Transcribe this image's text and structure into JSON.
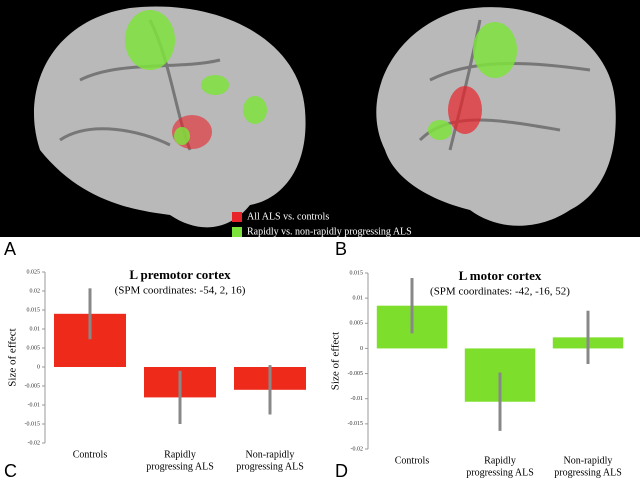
{
  "figure": {
    "panels": [
      "A",
      "B",
      "C",
      "D"
    ],
    "legend": [
      {
        "label": "All ALS vs. controls",
        "color": "#e8232a"
      },
      {
        "label": "Rapidly vs. non-rapidly progressing ALS",
        "color": "#7ee23c"
      }
    ]
  },
  "chart_data": [
    {
      "type": "bar",
      "title": "L premotor cortex",
      "subtitle": "(SPM coordinates: -54, 2, 16)",
      "y_label": "Size of effect",
      "categories": [
        [
          "Controls"
        ],
        [
          "Rapidly",
          "progressing ALS"
        ],
        [
          "Non-rapidly",
          "progressing ALS"
        ]
      ],
      "values": [
        0.014,
        -0.008,
        -0.006
      ],
      "errors": [
        0.0067,
        0.007,
        0.0065
      ],
      "color": "#ee2a1b",
      "ylim": [
        -0.02,
        0.025
      ],
      "yticks": [
        0.025,
        0.02,
        0.015,
        0.01,
        0.005,
        0,
        -0.005,
        -0.01,
        -0.015,
        -0.02
      ]
    },
    {
      "type": "bar",
      "title": "L motor cortex",
      "subtitle": "(SPM coordinates: -42, -16, 52)",
      "y_label": "Size of effect",
      "categories": [
        [
          "Controls"
        ],
        [
          "Rapidly",
          "progressing ALS"
        ],
        [
          "Non-rapidly",
          "progressing ALS"
        ]
      ],
      "values": [
        0.0085,
        -0.0106,
        0.0022
      ],
      "errors": [
        0.0055,
        0.0058,
        0.0053
      ],
      "color": "#7ede2c",
      "ylim": [
        -0.02,
        0.015
      ],
      "yticks": [
        0.015,
        0.01,
        0.005,
        0,
        -0.005,
        -0.01,
        -0.015,
        -0.02
      ]
    }
  ]
}
